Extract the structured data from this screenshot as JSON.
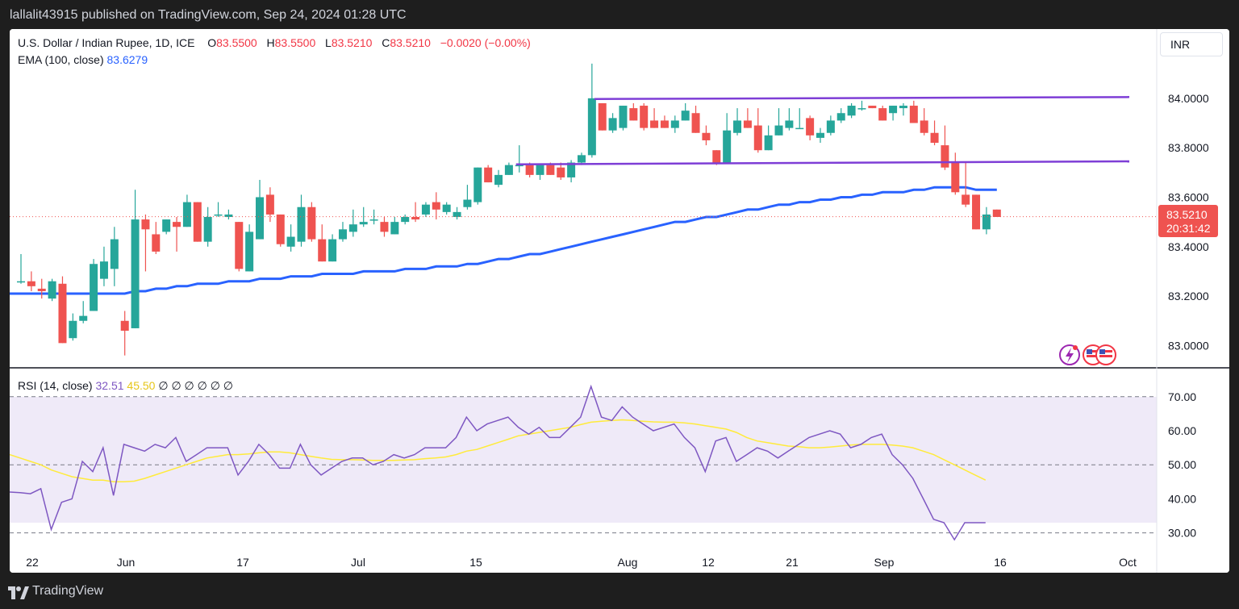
{
  "header": {
    "published": "lallalit43915 published on TradingView.com, Sep 24, 2024 01:28 UTC"
  },
  "legend": {
    "symbol": "U.S. Dollar / Indian Rupee, 1D, ICE",
    "o_label": "O",
    "o_value": "83.5500",
    "h_label": "H",
    "h_value": "83.5500",
    "l_label": "L",
    "l_value": "83.5210",
    "c_label": "C",
    "c_value": "83.5210",
    "change": "−0.0020 (−0.00%)",
    "ema_label": "EMA (100, close)",
    "ema_value": "83.6279",
    "rsi_label": "RSI (14, close)",
    "rsi_value": "32.51",
    "rsi_ma_value": "45.50",
    "rsi_extra": "∅ ∅ ∅ ∅ ∅ ∅"
  },
  "currency_button": "INR",
  "price_label": {
    "value": "83.5210",
    "countdown": "20:31:42"
  },
  "footer": {
    "brand": "TradingView"
  },
  "colors": {
    "up": "#26a69a",
    "down": "#ef5350",
    "ema": "#2962ff",
    "rsi": "#7e57c2",
    "rsi_ma": "#ffeb3b",
    "channel": "#7e3ed6"
  },
  "chart_data": [
    {
      "type": "candlestick",
      "title": "U.S. Dollar / Indian Rupee, 1D, ICE",
      "price_axis_ticks": [
        "84.0000",
        "83.8000",
        "83.6000",
        "83.4000",
        "83.2000",
        "83.0000"
      ],
      "ylim": [
        82.91,
        84.28
      ],
      "x_tick_labels": [
        "22",
        "Jun",
        "17",
        "Jul",
        "15",
        "Aug",
        "12",
        "21",
        "Sep",
        "16",
        "Oct"
      ],
      "candles": [
        {
          "o": 83.26,
          "h": 83.37,
          "l": 83.25,
          "c": 83.26
        },
        {
          "o": 83.26,
          "h": 83.3,
          "l": 83.22,
          "c": 83.24
        },
        {
          "o": 83.23,
          "h": 83.27,
          "l": 83.19,
          "c": 83.22
        },
        {
          "o": 83.19,
          "h": 83.27,
          "l": 83.18,
          "c": 83.26
        },
        {
          "o": 83.25,
          "h": 83.28,
          "l": 83.01,
          "c": 83.01
        },
        {
          "o": 83.03,
          "h": 83.13,
          "l": 83.02,
          "c": 83.1
        },
        {
          "o": 83.1,
          "h": 83.18,
          "l": 83.09,
          "c": 83.12
        },
        {
          "o": 83.14,
          "h": 83.35,
          "l": 83.14,
          "c": 83.33
        },
        {
          "o": 83.27,
          "h": 83.4,
          "l": 83.24,
          "c": 83.34
        },
        {
          "o": 83.31,
          "h": 83.48,
          "l": 83.24,
          "c": 83.43
        },
        {
          "o": 83.1,
          "h": 83.14,
          "l": 82.96,
          "c": 83.06
        },
        {
          "o": 83.07,
          "h": 83.63,
          "l": 83.07,
          "c": 83.51
        },
        {
          "o": 83.51,
          "h": 83.53,
          "l": 83.3,
          "c": 83.47
        },
        {
          "o": 83.45,
          "h": 83.5,
          "l": 83.37,
          "c": 83.38
        },
        {
          "o": 83.46,
          "h": 83.51,
          "l": 83.45,
          "c": 83.51
        },
        {
          "o": 83.5,
          "h": 83.52,
          "l": 83.38,
          "c": 83.48
        },
        {
          "o": 83.48,
          "h": 83.61,
          "l": 83.48,
          "c": 83.58
        },
        {
          "o": 83.58,
          "h": 83.58,
          "l": 83.42,
          "c": 83.42
        },
        {
          "o": 83.42,
          "h": 83.56,
          "l": 83.4,
          "c": 83.52
        },
        {
          "o": 83.53,
          "h": 83.58,
          "l": 83.52,
          "c": 83.53
        },
        {
          "o": 83.52,
          "h": 83.55,
          "l": 83.51,
          "c": 83.53
        },
        {
          "o": 83.5,
          "h": 83.5,
          "l": 83.3,
          "c": 83.31
        },
        {
          "o": 83.3,
          "h": 83.49,
          "l": 83.3,
          "c": 83.46
        },
        {
          "o": 83.43,
          "h": 83.67,
          "l": 83.43,
          "c": 83.6
        },
        {
          "o": 83.61,
          "h": 83.64,
          "l": 83.5,
          "c": 83.53
        },
        {
          "o": 83.53,
          "h": 83.53,
          "l": 83.4,
          "c": 83.41
        },
        {
          "o": 83.4,
          "h": 83.49,
          "l": 83.38,
          "c": 83.44
        },
        {
          "o": 83.42,
          "h": 83.61,
          "l": 83.4,
          "c": 83.56
        },
        {
          "o": 83.56,
          "h": 83.58,
          "l": 83.42,
          "c": 83.43
        },
        {
          "o": 83.43,
          "h": 83.49,
          "l": 83.34,
          "c": 83.34
        },
        {
          "o": 83.34,
          "h": 83.45,
          "l": 83.34,
          "c": 83.43
        },
        {
          "o": 83.43,
          "h": 83.5,
          "l": 83.42,
          "c": 83.47
        },
        {
          "o": 83.46,
          "h": 83.55,
          "l": 83.44,
          "c": 83.49
        },
        {
          "o": 83.49,
          "h": 83.56,
          "l": 83.48,
          "c": 83.5
        },
        {
          "o": 83.51,
          "h": 83.55,
          "l": 83.49,
          "c": 83.51
        },
        {
          "o": 83.5,
          "h": 83.52,
          "l": 83.44,
          "c": 83.46
        },
        {
          "o": 83.45,
          "h": 83.52,
          "l": 83.45,
          "c": 83.5
        },
        {
          "o": 83.5,
          "h": 83.53,
          "l": 83.49,
          "c": 83.52
        },
        {
          "o": 83.52,
          "h": 83.58,
          "l": 83.5,
          "c": 83.51
        },
        {
          "o": 83.53,
          "h": 83.58,
          "l": 83.52,
          "c": 83.57
        },
        {
          "o": 83.58,
          "h": 83.62,
          "l": 83.51,
          "c": 83.55
        },
        {
          "o": 83.54,
          "h": 83.58,
          "l": 83.53,
          "c": 83.57
        },
        {
          "o": 83.52,
          "h": 83.56,
          "l": 83.51,
          "c": 83.54
        },
        {
          "o": 83.56,
          "h": 83.65,
          "l": 83.55,
          "c": 83.59
        },
        {
          "o": 83.58,
          "h": 83.72,
          "l": 83.57,
          "c": 83.72
        },
        {
          "o": 83.72,
          "h": 83.73,
          "l": 83.66,
          "c": 83.66
        },
        {
          "o": 83.65,
          "h": 83.71,
          "l": 83.64,
          "c": 83.69
        },
        {
          "o": 83.69,
          "h": 83.74,
          "l": 83.69,
          "c": 83.73
        },
        {
          "o": 83.73,
          "h": 83.81,
          "l": 83.7,
          "c": 83.73
        },
        {
          "o": 83.73,
          "h": 83.74,
          "l": 83.68,
          "c": 83.69
        },
        {
          "o": 83.69,
          "h": 83.73,
          "l": 83.67,
          "c": 83.73
        },
        {
          "o": 83.73,
          "h": 83.74,
          "l": 83.69,
          "c": 83.69
        },
        {
          "o": 83.72,
          "h": 83.74,
          "l": 83.67,
          "c": 83.68
        },
        {
          "o": 83.68,
          "h": 83.75,
          "l": 83.66,
          "c": 83.74
        },
        {
          "o": 83.74,
          "h": 83.78,
          "l": 83.73,
          "c": 83.77
        },
        {
          "o": 83.77,
          "h": 84.14,
          "l": 83.76,
          "c": 84.0
        },
        {
          "o": 83.98,
          "h": 83.98,
          "l": 83.87,
          "c": 83.87
        },
        {
          "o": 83.87,
          "h": 83.94,
          "l": 83.86,
          "c": 83.92
        },
        {
          "o": 83.88,
          "h": 83.97,
          "l": 83.87,
          "c": 83.97
        },
        {
          "o": 83.96,
          "h": 83.98,
          "l": 83.91,
          "c": 83.91
        },
        {
          "o": 83.97,
          "h": 83.98,
          "l": 83.87,
          "c": 83.88
        },
        {
          "o": 83.91,
          "h": 83.96,
          "l": 83.88,
          "c": 83.88
        },
        {
          "o": 83.91,
          "h": 83.93,
          "l": 83.88,
          "c": 83.88
        },
        {
          "o": 83.88,
          "h": 83.93,
          "l": 83.86,
          "c": 83.91
        },
        {
          "o": 83.91,
          "h": 83.98,
          "l": 83.91,
          "c": 83.95
        },
        {
          "o": 83.94,
          "h": 83.97,
          "l": 83.86,
          "c": 83.86
        },
        {
          "o": 83.86,
          "h": 83.89,
          "l": 83.81,
          "c": 83.83
        },
        {
          "o": 83.79,
          "h": 83.79,
          "l": 83.73,
          "c": 83.74
        },
        {
          "o": 83.74,
          "h": 83.94,
          "l": 83.74,
          "c": 83.87
        },
        {
          "o": 83.86,
          "h": 83.96,
          "l": 83.85,
          "c": 83.91
        },
        {
          "o": 83.91,
          "h": 83.96,
          "l": 83.88,
          "c": 83.88
        },
        {
          "o": 83.89,
          "h": 83.96,
          "l": 83.78,
          "c": 83.79
        },
        {
          "o": 83.79,
          "h": 83.89,
          "l": 83.79,
          "c": 83.85
        },
        {
          "o": 83.85,
          "h": 83.96,
          "l": 83.85,
          "c": 83.89
        },
        {
          "o": 83.88,
          "h": 83.96,
          "l": 83.87,
          "c": 83.91
        },
        {
          "o": 83.88,
          "h": 83.96,
          "l": 83.88,
          "c": 83.88
        },
        {
          "o": 83.92,
          "h": 83.93,
          "l": 83.83,
          "c": 83.85
        },
        {
          "o": 83.84,
          "h": 83.88,
          "l": 83.82,
          "c": 83.86
        },
        {
          "o": 83.86,
          "h": 83.93,
          "l": 83.85,
          "c": 83.91
        },
        {
          "o": 83.91,
          "h": 83.96,
          "l": 83.9,
          "c": 83.94
        },
        {
          "o": 83.93,
          "h": 83.98,
          "l": 83.92,
          "c": 83.97
        },
        {
          "o": 83.96,
          "h": 83.99,
          "l": 83.95,
          "c": 83.96
        },
        {
          "o": 83.97,
          "h": 83.97,
          "l": 83.96,
          "c": 83.96
        },
        {
          "o": 83.96,
          "h": 83.97,
          "l": 83.91,
          "c": 83.91
        },
        {
          "o": 83.94,
          "h": 83.97,
          "l": 83.91,
          "c": 83.97
        },
        {
          "o": 83.96,
          "h": 83.98,
          "l": 83.93,
          "c": 83.97
        },
        {
          "o": 83.97,
          "h": 83.99,
          "l": 83.9,
          "c": 83.9
        },
        {
          "o": 83.91,
          "h": 83.96,
          "l": 83.85,
          "c": 83.86
        },
        {
          "o": 83.86,
          "h": 83.91,
          "l": 83.81,
          "c": 83.82
        },
        {
          "o": 83.81,
          "h": 83.89,
          "l": 83.71,
          "c": 83.72
        },
        {
          "o": 83.74,
          "h": 83.78,
          "l": 83.61,
          "c": 83.62
        },
        {
          "o": 83.61,
          "h": 83.74,
          "l": 83.56,
          "c": 83.57
        },
        {
          "o": 83.61,
          "h": 83.61,
          "l": 83.47,
          "c": 83.47
        },
        {
          "o": 83.47,
          "h": 83.56,
          "l": 83.45,
          "c": 83.53
        },
        {
          "o": 83.55,
          "h": 83.55,
          "l": 83.52,
          "c": 83.52
        }
      ],
      "ema_100": [
        83.21,
        83.21,
        83.21,
        83.21,
        83.21,
        83.21,
        83.21,
        83.21,
        83.21,
        83.21,
        83.21,
        83.22,
        83.22,
        83.23,
        83.23,
        83.24,
        83.24,
        83.25,
        83.25,
        83.25,
        83.26,
        83.26,
        83.26,
        83.27,
        83.27,
        83.27,
        83.28,
        83.28,
        83.28,
        83.29,
        83.29,
        83.29,
        83.29,
        83.3,
        83.3,
        83.3,
        83.3,
        83.31,
        83.31,
        83.31,
        83.32,
        83.32,
        83.32,
        83.33,
        83.33,
        83.34,
        83.35,
        83.35,
        83.36,
        83.37,
        83.37,
        83.38,
        83.39,
        83.4,
        83.41,
        83.42,
        83.43,
        83.44,
        83.45,
        83.46,
        83.47,
        83.48,
        83.49,
        83.5,
        83.5,
        83.51,
        83.52,
        83.52,
        83.53,
        83.54,
        83.55,
        83.55,
        83.56,
        83.57,
        83.57,
        83.58,
        83.58,
        83.59,
        83.59,
        83.6,
        83.6,
        83.61,
        83.61,
        83.62,
        83.62,
        83.62,
        83.63,
        83.63,
        83.64,
        83.64,
        83.64,
        83.64,
        83.63,
        83.63,
        83.63
      ],
      "channel_upper": {
        "from": 83.997,
        "to": 84.005
      },
      "channel_lower": {
        "from": 83.733,
        "to": 83.745
      },
      "last_price": 83.521
    },
    {
      "type": "line",
      "title": "RSI (14, close)",
      "y_axis_ticks": [
        "70.00",
        "60.00",
        "50.00",
        "40.00",
        "30.00"
      ],
      "ylim": [
        24,
        78
      ],
      "levels": [
        70,
        50,
        30
      ],
      "series": [
        {
          "name": "RSI",
          "values": [
            42,
            41.8,
            41.5,
            43,
            31,
            39,
            40,
            51,
            48,
            55,
            41,
            56,
            55,
            54,
            56,
            55,
            58,
            51,
            53,
            55,
            55,
            55,
            47,
            51,
            56,
            53,
            49,
            49,
            56,
            50,
            47,
            49,
            51,
            52,
            52,
            50,
            51,
            53,
            52,
            53,
            55,
            55,
            55,
            58,
            64,
            60,
            62,
            63,
            64,
            61,
            59,
            61,
            58,
            58,
            61,
            64,
            73,
            64,
            63,
            67,
            64,
            62,
            60,
            61,
            62,
            58,
            55,
            48,
            57,
            58,
            51,
            53,
            55,
            54,
            52,
            54,
            56,
            58,
            59,
            60,
            59,
            55,
            56,
            58,
            59,
            53,
            50,
            46,
            40,
            34,
            33,
            28,
            33,
            33,
            33
          ]
        },
        {
          "name": "RSI MA",
          "values": [
            53,
            52,
            51,
            50,
            48.5,
            47.5,
            46.5,
            46,
            45.5,
            45.5,
            45,
            45,
            45.2,
            46,
            47,
            48,
            49,
            50,
            51,
            52,
            52.5,
            53,
            53,
            53.2,
            53.5,
            53.8,
            53.8,
            53.5,
            53,
            52.5,
            52,
            51.6,
            51.5,
            51.5,
            51.4,
            51.3,
            51.3,
            51.3,
            51.4,
            51.5,
            51.8,
            52,
            52.3,
            53,
            54,
            54.5,
            55.5,
            56.5,
            57.5,
            58.5,
            59,
            59.5,
            60,
            60.5,
            61,
            61.8,
            62.5,
            62.8,
            63,
            63.2,
            63,
            62.8,
            62.6,
            62.5,
            62.5,
            62.3,
            62,
            61.5,
            61,
            60.5,
            59.5,
            58,
            57,
            56.5,
            56,
            55.5,
            55.3,
            55,
            55,
            55.2,
            55.5,
            55.8,
            56,
            56,
            56,
            55.8,
            55.5,
            55,
            54,
            53,
            51.5,
            50,
            48.5,
            47,
            45.5
          ]
        }
      ]
    }
  ]
}
